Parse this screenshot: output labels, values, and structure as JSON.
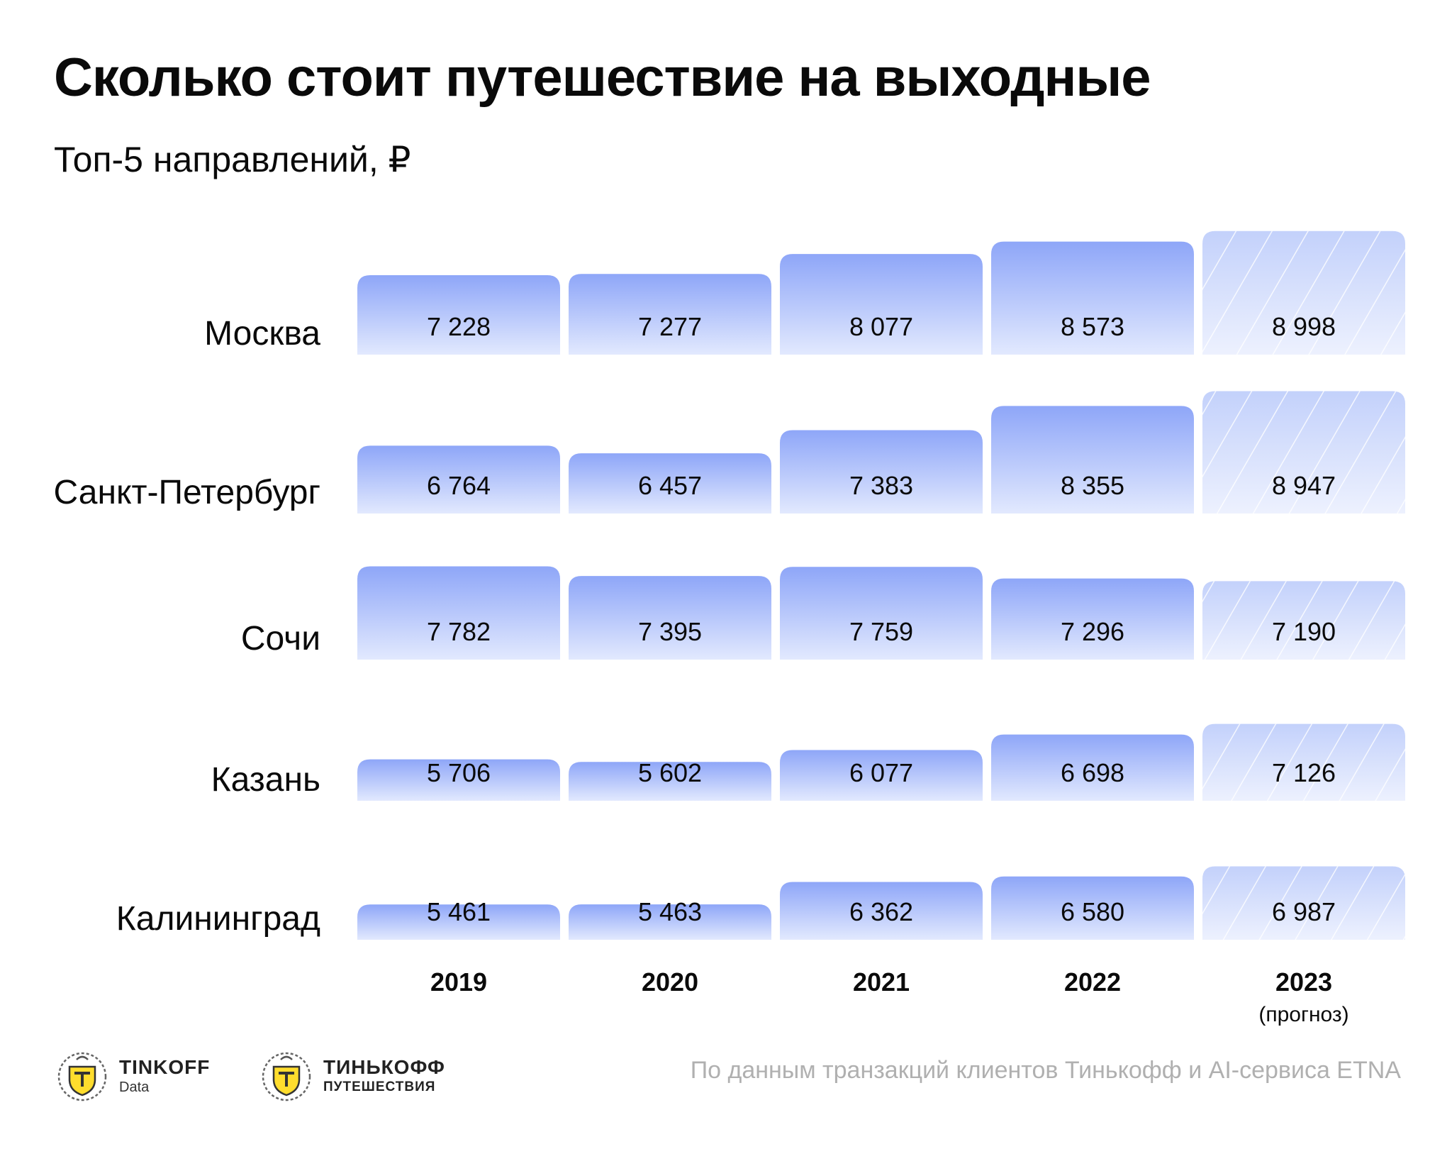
{
  "title": "Сколько стоит путешествие на выходные",
  "subtitle": "Топ-5 направлений, ₽",
  "chart_data": {
    "type": "bar",
    "title": "Сколько стоит путешествие на выходные",
    "subtitle": "Топ-5 направлений, ₽",
    "x_categories": [
      "2019",
      "2020",
      "2021",
      "2022",
      "2023"
    ],
    "x_notes": [
      "",
      "",
      "",
      "",
      "(прогноз)"
    ],
    "forecast_index": 4,
    "rows": [
      {
        "name": "Москва",
        "values": [
          7228,
          7277,
          8077,
          8573,
          8998
        ],
        "labels": [
          "7 228",
          "7 277",
          "8 077",
          "8 573",
          "8 998"
        ]
      },
      {
        "name": "Санкт-Петербург",
        "values": [
          6764,
          6457,
          7383,
          8355,
          8947
        ],
        "labels": [
          "6 764",
          "6 457",
          "7 383",
          "8 355",
          "8 947"
        ]
      },
      {
        "name": "Сочи",
        "values": [
          7782,
          7395,
          7759,
          7296,
          7190
        ],
        "labels": [
          "7 782",
          "7 395",
          "7 759",
          "7 296",
          "7 190"
        ]
      },
      {
        "name": "Казань",
        "values": [
          5706,
          5602,
          6077,
          6698,
          7126
        ],
        "labels": [
          "5 706",
          "5 602",
          "6 077",
          "6 698",
          "7 126"
        ]
      },
      {
        "name": "Калининград",
        "values": [
          5461,
          5463,
          6362,
          6580,
          6987
        ],
        "labels": [
          "5 461",
          "5 463",
          "6 362",
          "6 580",
          "6 987"
        ]
      }
    ],
    "colors": {
      "bar_top": "#8ea6f8",
      "bar_bottom": "#e2e9fe",
      "forecast_top": "#c3d1fb",
      "forecast_bottom": "#edf1fe",
      "text": "#0a0a0a"
    },
    "grid": false,
    "legend": "none"
  },
  "footer": {
    "source": "По данным транзакций клиентов Тинькофф и AI-сервиса ETNA",
    "logos": [
      {
        "line1": "TINKOFF",
        "line2": "Data",
        "icon": "tinkoff-emblem-icon"
      },
      {
        "line1": "ТИНЬКОФФ",
        "line2": "ПУТЕШЕСТВИЯ",
        "icon": "tinkoff-emblem-icon"
      }
    ]
  }
}
